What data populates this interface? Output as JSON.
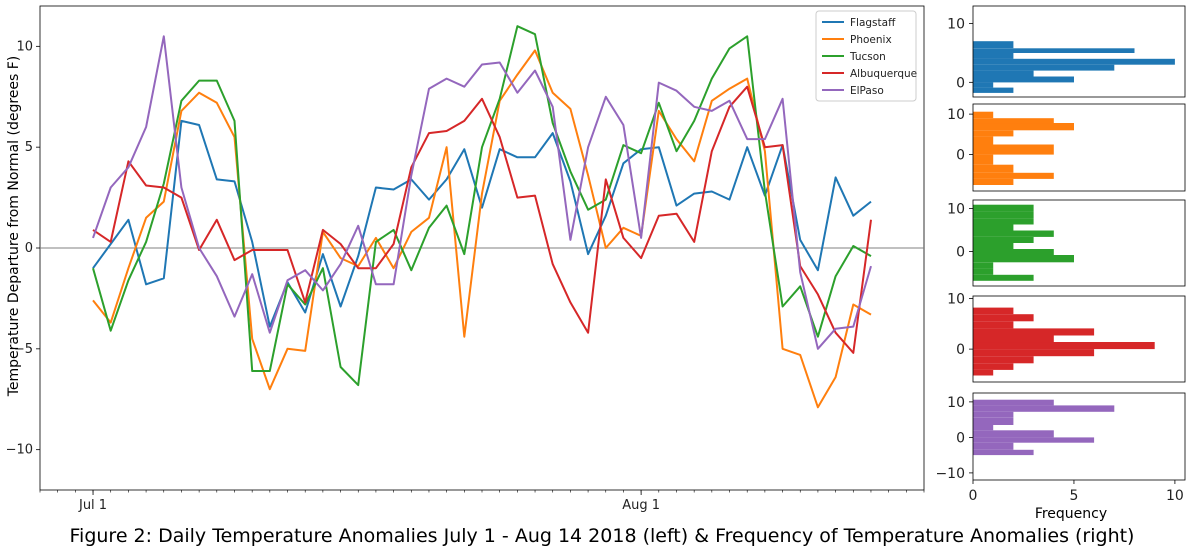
{
  "caption": "Figure 2: Daily Temperature Anomalies July 1 - Aug 14 2018 (left) & Frequency of Temperature Anomalies (right)",
  "chart_data": [
    {
      "type": "line",
      "ylabel": "Temperature Departure from Normal (degrees F)",
      "xlim": [
        "2018-06-28",
        "2018-08-17"
      ],
      "ylim": [
        -12,
        12
      ],
      "yticks": [
        -10,
        -5,
        0,
        5,
        10
      ],
      "xticks": [
        {
          "date": "2018-07-01",
          "label": "Jul 1"
        },
        {
          "date": "2018-08-01",
          "label": "Aug 1"
        }
      ],
      "zero_line": true,
      "legend_position": "top-right",
      "x_start": "2018-07-01",
      "series": [
        {
          "name": "Flagstaff",
          "color": "#1f77b4",
          "values": [
            -1.0,
            0.2,
            1.4,
            -1.8,
            -1.5,
            6.3,
            6.1,
            3.4,
            3.3,
            0.3,
            -3.9,
            -1.7,
            -3.2,
            -0.3,
            -2.9,
            -0.4,
            3.0,
            2.9,
            3.4,
            2.4,
            3.4,
            4.9,
            2.0,
            4.9,
            4.5,
            4.5,
            5.7,
            3.3,
            -0.3,
            1.6,
            4.2,
            4.9,
            5.0,
            2.1,
            2.7,
            2.8,
            2.4,
            5.0,
            2.6,
            5.1,
            0.4,
            -1.1,
            3.5,
            1.6,
            2.3
          ]
        },
        {
          "name": "Phoenix",
          "color": "#ff7f0e",
          "values": [
            -2.6,
            -3.7,
            -1.0,
            1.5,
            2.3,
            6.8,
            7.7,
            7.2,
            5.5,
            -4.5,
            -7.0,
            -5.0,
            -5.1,
            0.8,
            -0.5,
            -0.9,
            0.5,
            -1.0,
            0.8,
            1.5,
            5.0,
            -4.4,
            2.7,
            7.3,
            8.6,
            9.8,
            7.7,
            6.9,
            3.6,
            0.0,
            1.0,
            0.6,
            6.8,
            5.4,
            4.3,
            7.3,
            7.9,
            8.4,
            4.8,
            -5.0,
            -5.3,
            -7.9,
            -6.4,
            -2.8,
            -3.3
          ]
        },
        {
          "name": "Tucson",
          "color": "#2ca02c",
          "values": [
            -1.0,
            -4.1,
            -1.6,
            0.3,
            3.2,
            7.3,
            8.3,
            8.3,
            6.3,
            -6.1,
            -6.1,
            -1.8,
            -2.8,
            -1.0,
            -5.9,
            -6.8,
            0.3,
            0.9,
            -1.1,
            1.0,
            2.1,
            -0.3,
            5.0,
            7.4,
            11.0,
            10.6,
            6.2,
            3.8,
            1.9,
            2.4,
            5.1,
            4.7,
            7.2,
            4.8,
            6.3,
            8.4,
            9.9,
            10.5,
            2.8,
            -2.9,
            -1.9,
            -4.4,
            -1.4,
            0.1,
            -0.4
          ]
        },
        {
          "name": "Albuquerque",
          "color": "#d62728",
          "values": [
            0.9,
            0.3,
            4.3,
            3.1,
            3.0,
            2.5,
            -0.1,
            1.4,
            -0.6,
            -0.1,
            -0.1,
            -0.1,
            -2.7,
            0.9,
            0.2,
            -1.0,
            -1.0,
            0.2,
            4.0,
            5.7,
            5.8,
            6.3,
            7.4,
            5.5,
            2.5,
            2.6,
            -0.8,
            -2.7,
            -4.2,
            3.4,
            0.5,
            -0.5,
            1.6,
            1.7,
            0.3,
            4.8,
            7.0,
            8.0,
            5.0,
            5.1,
            -0.9,
            -2.3,
            -4.2,
            -5.2,
            1.4
          ]
        },
        {
          "name": "ElPaso",
          "color": "#9467bd",
          "values": [
            0.5,
            3.0,
            4.0,
            6.0,
            10.5,
            3.0,
            0.0,
            -1.4,
            -3.4,
            -1.3,
            -4.2,
            -1.6,
            -1.1,
            -2.1,
            -0.8,
            1.1,
            -1.8,
            -1.8,
            3.6,
            7.9,
            8.4,
            8.0,
            9.1,
            9.2,
            7.7,
            8.8,
            7.0,
            0.4,
            5.0,
            7.5,
            6.1,
            0.5,
            8.2,
            7.8,
            7.0,
            6.8,
            7.3,
            5.4,
            5.4,
            7.4,
            -1.2,
            -5.0,
            -4.0,
            -3.9,
            -0.9
          ]
        }
      ]
    },
    {
      "type": "bar",
      "orientation": "horizontal",
      "xlabel": "Frequency",
      "xlim": [
        0,
        10.5
      ],
      "xticks": [
        0,
        5,
        10
      ],
      "panels": [
        {
          "color": "#1f77b4",
          "ylim": [
            -2.5,
            13
          ],
          "yticks": [
            0,
            10
          ],
          "bins": [
            [
              -1.8,
              -0.9,
              2
            ],
            [
              -0.9,
              0.0,
              1
            ],
            [
              0.0,
              1.0,
              5
            ],
            [
              1.0,
              2.0,
              3
            ],
            [
              2.0,
              3.0,
              7
            ],
            [
              3.0,
              4.0,
              10
            ],
            [
              4.0,
              5.0,
              2
            ],
            [
              5.0,
              5.8,
              8
            ],
            [
              5.8,
              7.0,
              2
            ]
          ]
        },
        {
          "color": "#ff7f0e",
          "ylim": [
            -9,
            12.5
          ],
          "yticks": [
            0,
            10
          ],
          "bins": [
            [
              -7.5,
              -6.0,
              2
            ],
            [
              -6.0,
              -4.5,
              4
            ],
            [
              -4.5,
              -2.5,
              2
            ],
            [
              -2.5,
              0.0,
              1
            ],
            [
              0.0,
              2.5,
              4
            ],
            [
              2.5,
              4.5,
              1
            ],
            [
              4.5,
              6.0,
              2
            ],
            [
              6.0,
              7.8,
              5
            ],
            [
              7.8,
              9.0,
              4
            ],
            [
              9.0,
              10.6,
              1
            ]
          ]
        },
        {
          "color": "#2ca02c",
          "ylim": [
            -8,
            12
          ],
          "yticks": [
            0,
            10
          ],
          "bins": [
            [
              -6.8,
              -5.4,
              3
            ],
            [
              -5.4,
              -3.9,
              1
            ],
            [
              -3.9,
              -2.5,
              1
            ],
            [
              -2.5,
              -0.8,
              5
            ],
            [
              -0.8,
              0.6,
              4
            ],
            [
              0.6,
              2.0,
              2
            ],
            [
              2.0,
              3.4,
              3
            ],
            [
              3.4,
              4.9,
              4
            ],
            [
              4.9,
              6.3,
              2
            ],
            [
              6.3,
              7.8,
              3
            ],
            [
              7.8,
              9.3,
              3
            ],
            [
              9.3,
              10.9,
              3
            ]
          ]
        },
        {
          "color": "#d62728",
          "ylim": [
            -6.5,
            10.5
          ],
          "yticks": [
            0,
            10
          ],
          "bins": [
            [
              -5.2,
              -4.1,
              1
            ],
            [
              -4.1,
              -2.8,
              2
            ],
            [
              -2.8,
              -1.4,
              3
            ],
            [
              -1.4,
              0.0,
              6
            ],
            [
              0.0,
              1.4,
              9
            ],
            [
              1.4,
              2.7,
              4
            ],
            [
              2.7,
              4.1,
              6
            ],
            [
              4.1,
              5.5,
              2
            ],
            [
              5.5,
              6.9,
              3
            ],
            [
              6.9,
              8.2,
              2
            ]
          ]
        },
        {
          "color": "#9467bd",
          "ylim": [
            -12,
            12.5
          ],
          "yticks": [
            -10,
            0,
            10
          ],
          "bins": [
            [
              -5.0,
              -3.5,
              3
            ],
            [
              -3.5,
              -1.5,
              2
            ],
            [
              -1.5,
              0.0,
              6
            ],
            [
              0.0,
              2.0,
              4
            ],
            [
              2.0,
              3.5,
              1
            ],
            [
              3.5,
              5.5,
              2
            ],
            [
              5.5,
              7.2,
              2
            ],
            [
              7.2,
              9.0,
              7
            ],
            [
              9.0,
              10.6,
              4
            ]
          ]
        }
      ]
    }
  ]
}
